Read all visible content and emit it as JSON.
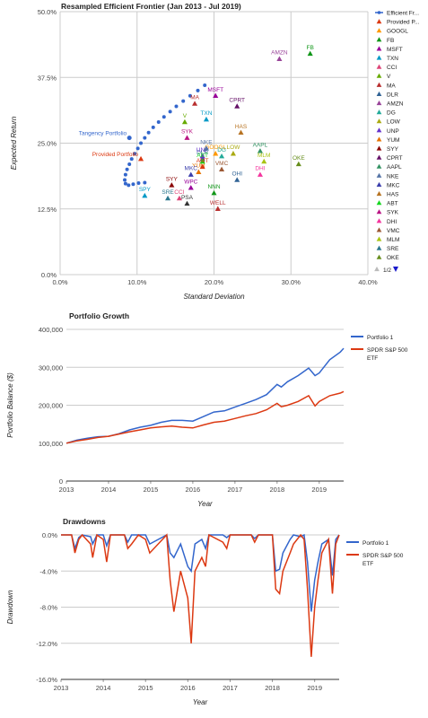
{
  "chart_data": [
    {
      "type": "scatter",
      "title": "Resampled Efficient Frontier (Jan 2013 - Jul 2019)",
      "xlabel": "Standard Deviation",
      "ylabel": "Expected Return",
      "xlim": [
        0,
        40
      ],
      "ylim": [
        0,
        50
      ],
      "x_ticks": [
        "0.0%",
        "10.0%",
        "20.0%",
        "30.0%",
        "40.0%"
      ],
      "y_ticks": [
        "0.0%",
        "12.5%",
        "25.0%",
        "37.5%",
        "50.0%"
      ],
      "grid": true,
      "legend_position": "right",
      "legend_page": "1/2",
      "frontier": {
        "name": "Efficient Fr...",
        "color": "#3366cc",
        "points": [
          [
            11.0,
            17.5
          ],
          [
            10.2,
            17.4
          ],
          [
            9.5,
            17.2
          ],
          [
            8.9,
            17.0
          ],
          [
            8.5,
            17.3
          ],
          [
            8.4,
            18.0
          ],
          [
            8.5,
            19.0
          ],
          [
            8.7,
            20.0
          ],
          [
            9.0,
            21.0
          ],
          [
            9.3,
            22.0
          ],
          [
            9.7,
            23.0
          ],
          [
            10.1,
            24.0
          ],
          [
            10.5,
            25.0
          ],
          [
            11.0,
            26.0
          ],
          [
            11.5,
            27.0
          ],
          [
            12.1,
            28.0
          ],
          [
            12.8,
            29.0
          ],
          [
            13.5,
            30.0
          ],
          [
            14.3,
            31.0
          ],
          [
            15.1,
            32.0
          ],
          [
            16.0,
            33.0
          ],
          [
            16.9,
            34.0
          ],
          [
            17.9,
            35.0
          ],
          [
            18.8,
            36.0
          ]
        ]
      },
      "points": [
        {
          "label": "Tangency Portfolio",
          "x": 9.0,
          "y": 26.0,
          "color": "#3366cc",
          "shape": "circle",
          "label_pos": "left"
        },
        {
          "label": "Provided Portfolio",
          "x": 10.5,
          "y": 22.0,
          "color": "#dc3912",
          "shape": "triangle",
          "label_pos": "left"
        },
        {
          "label": "GOOGL",
          "x": 20.2,
          "y": 23.0,
          "color": "#ff9900",
          "shape": "triangle",
          "label_pos": "center"
        },
        {
          "label": "FB",
          "x": 32.5,
          "y": 42.0,
          "color": "#109618",
          "shape": "triangle",
          "label_pos": "center"
        },
        {
          "label": "MSFT",
          "x": 20.2,
          "y": 34.0,
          "color": "#990099",
          "shape": "triangle",
          "label_pos": "center"
        },
        {
          "label": "TXN",
          "x": 19.0,
          "y": 29.5,
          "color": "#0099c6",
          "shape": "triangle",
          "label_pos": "center"
        },
        {
          "label": "CCI",
          "x": 15.5,
          "y": 14.5,
          "color": "#dd4477",
          "shape": "triangle",
          "label_pos": "center"
        },
        {
          "label": "V",
          "x": 16.2,
          "y": 29.0,
          "color": "#66aa00",
          "shape": "triangle",
          "label_pos": "center"
        },
        {
          "label": "MA",
          "x": 17.5,
          "y": 32.5,
          "color": "#b82e2e",
          "shape": "triangle",
          "label_pos": "center"
        },
        {
          "label": "DLR",
          "x": 18.5,
          "y": 22.0,
          "color": "#316395",
          "shape": "triangle",
          "label_pos": "center"
        },
        {
          "label": "AMZN",
          "x": 28.5,
          "y": 41.0,
          "color": "#994499",
          "shape": "triangle",
          "label_pos": "center"
        },
        {
          "label": "DG",
          "x": 21.0,
          "y": 22.5,
          "color": "#22aa99",
          "shape": "triangle",
          "label_pos": "center"
        },
        {
          "label": "LOW",
          "x": 22.5,
          "y": 23.0,
          "color": "#aaaa11",
          "shape": "triangle",
          "label_pos": "center"
        },
        {
          "label": "UNP",
          "x": 18.5,
          "y": 22.5,
          "color": "#6633cc",
          "shape": "triangle",
          "label_pos": "center"
        },
        {
          "label": "YUM",
          "x": 18.0,
          "y": 19.5,
          "color": "#e67300",
          "shape": "triangle",
          "label_pos": "center"
        },
        {
          "label": "SYY",
          "x": 14.5,
          "y": 17.0,
          "color": "#8b0707",
          "shape": "triangle",
          "label_pos": "center"
        },
        {
          "label": "CPRT",
          "x": 23.0,
          "y": 32.0,
          "color": "#651067",
          "shape": "triangle",
          "label_pos": "center"
        },
        {
          "label": "AAPL",
          "x": 26.0,
          "y": 23.5,
          "color": "#329262",
          "shape": "triangle",
          "label_pos": "center"
        },
        {
          "label": "NKE",
          "x": 19.0,
          "y": 24.0,
          "color": "#5574a6",
          "shape": "triangle",
          "label_pos": "center"
        },
        {
          "label": "MKC",
          "x": 17.0,
          "y": 19.0,
          "color": "#3b3eac",
          "shape": "triangle",
          "label_pos": "center"
        },
        {
          "label": "HAS",
          "x": 23.5,
          "y": 27.0,
          "color": "#b77322",
          "shape": "triangle",
          "label_pos": "center"
        },
        {
          "label": "ABT",
          "x": 18.5,
          "y": 21.5,
          "color": "#16d620",
          "shape": "triangle",
          "label_pos": "center"
        },
        {
          "label": "SYK",
          "x": 16.5,
          "y": 26.0,
          "color": "#b91383",
          "shape": "triangle",
          "label_pos": "center"
        },
        {
          "label": "DHI",
          "x": 26.0,
          "y": 19.0,
          "color": "#f4359e",
          "shape": "triangle",
          "label_pos": "center"
        },
        {
          "label": "VMC",
          "x": 21.0,
          "y": 20.0,
          "color": "#9c5935",
          "shape": "triangle",
          "label_pos": "center"
        },
        {
          "label": "MLM",
          "x": 26.5,
          "y": 21.5,
          "color": "#a9c413",
          "shape": "triangle",
          "label_pos": "center"
        },
        {
          "label": "SRE",
          "x": 14.0,
          "y": 14.5,
          "color": "#2a778d",
          "shape": "triangle",
          "label_pos": "center"
        },
        {
          "label": "OKE",
          "x": 31.0,
          "y": 21.0,
          "color": "#668d1c",
          "shape": "triangle",
          "label_pos": "center"
        },
        {
          "label": "SPY",
          "x": 11.0,
          "y": 15.0,
          "color": "#0099c6",
          "shape": "triangle",
          "label_pos": "center"
        },
        {
          "label": "AMT",
          "x": 18.5,
          "y": 20.5,
          "color": "#dc3912",
          "shape": "triangle",
          "label_pos": "center"
        },
        {
          "label": "WPC",
          "x": 17.0,
          "y": 16.5,
          "color": "#990099",
          "shape": "triangle",
          "label_pos": "center"
        },
        {
          "label": "PSA",
          "x": 16.5,
          "y": 13.5,
          "color": "#333333",
          "shape": "triangle",
          "label_pos": "center"
        },
        {
          "label": "NNN",
          "x": 20.0,
          "y": 15.5,
          "color": "#109618",
          "shape": "triangle",
          "label_pos": "center"
        },
        {
          "label": "WELL",
          "x": 20.5,
          "y": 12.5,
          "color": "#b82e2e",
          "shape": "triangle",
          "label_pos": "center"
        },
        {
          "label": "OHI",
          "x": 23.0,
          "y": 18.0,
          "color": "#316395",
          "shape": "triangle",
          "label_pos": "center"
        }
      ],
      "legend": [
        {
          "label": "Efficient Fr...",
          "color": "#3366cc",
          "shape": "line"
        },
        {
          "label": "Provided P...",
          "color": "#dc3912",
          "shape": "triangle"
        },
        {
          "label": "GOOGL",
          "color": "#ff9900",
          "shape": "triangle"
        },
        {
          "label": "FB",
          "color": "#109618",
          "shape": "triangle"
        },
        {
          "label": "MSFT",
          "color": "#990099",
          "shape": "triangle"
        },
        {
          "label": "TXN",
          "color": "#0099c6",
          "shape": "triangle"
        },
        {
          "label": "CCI",
          "color": "#dd4477",
          "shape": "triangle"
        },
        {
          "label": "V",
          "color": "#66aa00",
          "shape": "triangle"
        },
        {
          "label": "MA",
          "color": "#b82e2e",
          "shape": "triangle"
        },
        {
          "label": "DLR",
          "color": "#316395",
          "shape": "triangle"
        },
        {
          "label": "AMZN",
          "color": "#994499",
          "shape": "triangle"
        },
        {
          "label": "DG",
          "color": "#22aa99",
          "shape": "triangle"
        },
        {
          "label": "LOW",
          "color": "#aaaa11",
          "shape": "triangle"
        },
        {
          "label": "UNP",
          "color": "#6633cc",
          "shape": "triangle"
        },
        {
          "label": "YUM",
          "color": "#e67300",
          "shape": "triangle"
        },
        {
          "label": "SYY",
          "color": "#8b0707",
          "shape": "triangle"
        },
        {
          "label": "CPRT",
          "color": "#651067",
          "shape": "triangle"
        },
        {
          "label": "AAPL",
          "color": "#329262",
          "shape": "triangle"
        },
        {
          "label": "NKE",
          "color": "#5574a6",
          "shape": "triangle"
        },
        {
          "label": "MKC",
          "color": "#3b3eac",
          "shape": "triangle"
        },
        {
          "label": "HAS",
          "color": "#b77322",
          "shape": "triangle"
        },
        {
          "label": "ABT",
          "color": "#16d620",
          "shape": "triangle"
        },
        {
          "label": "SYK",
          "color": "#b91383",
          "shape": "triangle"
        },
        {
          "label": "DHI",
          "color": "#f4359e",
          "shape": "triangle"
        },
        {
          "label": "VMC",
          "color": "#9c5935",
          "shape": "triangle"
        },
        {
          "label": "MLM",
          "color": "#a9c413",
          "shape": "triangle"
        },
        {
          "label": "SRE",
          "color": "#2a778d",
          "shape": "triangle"
        },
        {
          "label": "OKE",
          "color": "#668d1c",
          "shape": "triangle"
        }
      ]
    },
    {
      "type": "line",
      "title": "Portfolio Growth",
      "xlabel": "Year",
      "ylabel": "Portfolio Balance ($)",
      "xlim": [
        2013,
        2019.58
      ],
      "ylim": [
        0,
        400000
      ],
      "x_ticks": [
        "2013",
        "2014",
        "2015",
        "2016",
        "2017",
        "2018",
        "2019"
      ],
      "y_ticks": [
        "0",
        "100,000",
        "200,000",
        "300,000",
        "400,000"
      ],
      "grid": true,
      "legend_position": "right",
      "series": [
        {
          "name": "Portfolio 1",
          "color": "#3366cc",
          "x": [
            2013.0,
            2013.25,
            2013.5,
            2013.75,
            2014.0,
            2014.25,
            2014.5,
            2014.75,
            2015.0,
            2015.25,
            2015.5,
            2015.75,
            2016.0,
            2016.25,
            2016.5,
            2016.75,
            2017.0,
            2017.25,
            2017.5,
            2017.75,
            2018.0,
            2018.1,
            2018.25,
            2018.5,
            2018.75,
            2018.9,
            2019.0,
            2019.25,
            2019.5,
            2019.58
          ],
          "y": [
            100000,
            108000,
            113000,
            117000,
            118000,
            125000,
            135000,
            142000,
            147000,
            155000,
            160000,
            160000,
            158000,
            170000,
            182000,
            185000,
            195000,
            205000,
            215000,
            228000,
            255000,
            248000,
            262000,
            278000,
            298000,
            278000,
            285000,
            320000,
            340000,
            350000
          ]
        },
        {
          "name": "SPDR S&P 500 ETF",
          "color": "#dc3912",
          "x": [
            2013.0,
            2013.25,
            2013.5,
            2013.75,
            2014.0,
            2014.25,
            2014.5,
            2014.75,
            2015.0,
            2015.25,
            2015.5,
            2015.75,
            2016.0,
            2016.25,
            2016.5,
            2016.75,
            2017.0,
            2017.25,
            2017.5,
            2017.75,
            2018.0,
            2018.1,
            2018.25,
            2018.5,
            2018.75,
            2018.9,
            2019.0,
            2019.25,
            2019.5,
            2019.58
          ],
          "y": [
            100000,
            106000,
            110000,
            115000,
            118000,
            124000,
            130000,
            135000,
            140000,
            143000,
            145000,
            142000,
            140000,
            148000,
            155000,
            158000,
            165000,
            172000,
            178000,
            188000,
            205000,
            196000,
            200000,
            210000,
            225000,
            198000,
            210000,
            225000,
            232000,
            236000
          ]
        }
      ]
    },
    {
      "type": "line",
      "title": "Drawdowns",
      "xlabel": "Year",
      "ylabel": "Drawdown",
      "xlim": [
        2013,
        2019.58
      ],
      "ylim": [
        -16,
        0
      ],
      "x_ticks": [
        "2013",
        "2014",
        "2015",
        "2016",
        "2017",
        "2018",
        "2019"
      ],
      "y_ticks": [
        "0.0%",
        "-4.0%",
        "-8.0%",
        "-12.0%",
        "-16.0%"
      ],
      "grid": true,
      "legend_position": "right",
      "series": [
        {
          "name": "Portfolio 1",
          "color": "#3366cc",
          "x": [
            2013.0,
            2013.25,
            2013.33,
            2013.42,
            2013.5,
            2013.7,
            2013.75,
            2013.85,
            2014.0,
            2014.08,
            2014.17,
            2014.5,
            2014.58,
            2014.67,
            2014.83,
            2015.0,
            2015.1,
            2015.5,
            2015.58,
            2015.67,
            2015.83,
            2016.0,
            2016.08,
            2016.17,
            2016.33,
            2016.42,
            2016.5,
            2016.83,
            2016.92,
            2017.0,
            2017.5,
            2017.58,
            2017.67,
            2018.0,
            2018.08,
            2018.17,
            2018.25,
            2018.42,
            2018.5,
            2018.67,
            2018.75,
            2018.83,
            2018.92,
            2019.0,
            2019.08,
            2019.17,
            2019.33,
            2019.42,
            2019.5,
            2019.58
          ],
          "y": [
            0,
            0,
            -1.5,
            -0.3,
            0,
            -0.2,
            -1.0,
            0,
            0,
            -1.2,
            0,
            0,
            -0.8,
            0,
            0,
            0,
            -1.0,
            0,
            -2.0,
            -2.5,
            -1.0,
            -3.5,
            -4.0,
            -1.0,
            -0.5,
            -1.5,
            0,
            0,
            -0.3,
            0,
            0,
            -0.4,
            0,
            0,
            -4.0,
            -3.8,
            -2.0,
            -0.5,
            0,
            -0.2,
            0,
            -3.0,
            -8.5,
            -5.0,
            -3.0,
            -1.0,
            -0.5,
            -4.5,
            -0.5,
            0
          ]
        },
        {
          "name": "SPDR S&P 500 ETF",
          "color": "#dc3912",
          "x": [
            2013.0,
            2013.25,
            2013.33,
            2013.42,
            2013.5,
            2013.7,
            2013.75,
            2013.85,
            2014.0,
            2014.08,
            2014.17,
            2014.5,
            2014.58,
            2014.67,
            2014.83,
            2015.0,
            2015.1,
            2015.5,
            2015.58,
            2015.67,
            2015.83,
            2016.0,
            2016.08,
            2016.17,
            2016.33,
            2016.42,
            2016.5,
            2016.83,
            2016.92,
            2017.0,
            2017.5,
            2017.58,
            2017.67,
            2018.0,
            2018.08,
            2018.17,
            2018.25,
            2018.42,
            2018.5,
            2018.67,
            2018.75,
            2018.83,
            2018.92,
            2019.0,
            2019.08,
            2019.17,
            2019.33,
            2019.42,
            2019.5,
            2019.58
          ],
          "y": [
            0,
            0,
            -2.0,
            -0.5,
            0,
            -1.0,
            -2.5,
            0,
            -0.5,
            -3.0,
            0,
            0,
            -1.5,
            -1.0,
            0,
            -0.5,
            -2.0,
            0,
            -5.0,
            -8.5,
            -4.0,
            -7.0,
            -12.0,
            -4.0,
            -2.5,
            -3.5,
            0,
            -0.8,
            -1.5,
            0,
            0,
            -0.8,
            0,
            0,
            -6.0,
            -6.5,
            -4.0,
            -2.0,
            -1.0,
            0,
            -0.5,
            -6.0,
            -13.5,
            -8.0,
            -5.0,
            -2.0,
            -0.5,
            -6.5,
            -1.0,
            0
          ]
        }
      ]
    }
  ]
}
